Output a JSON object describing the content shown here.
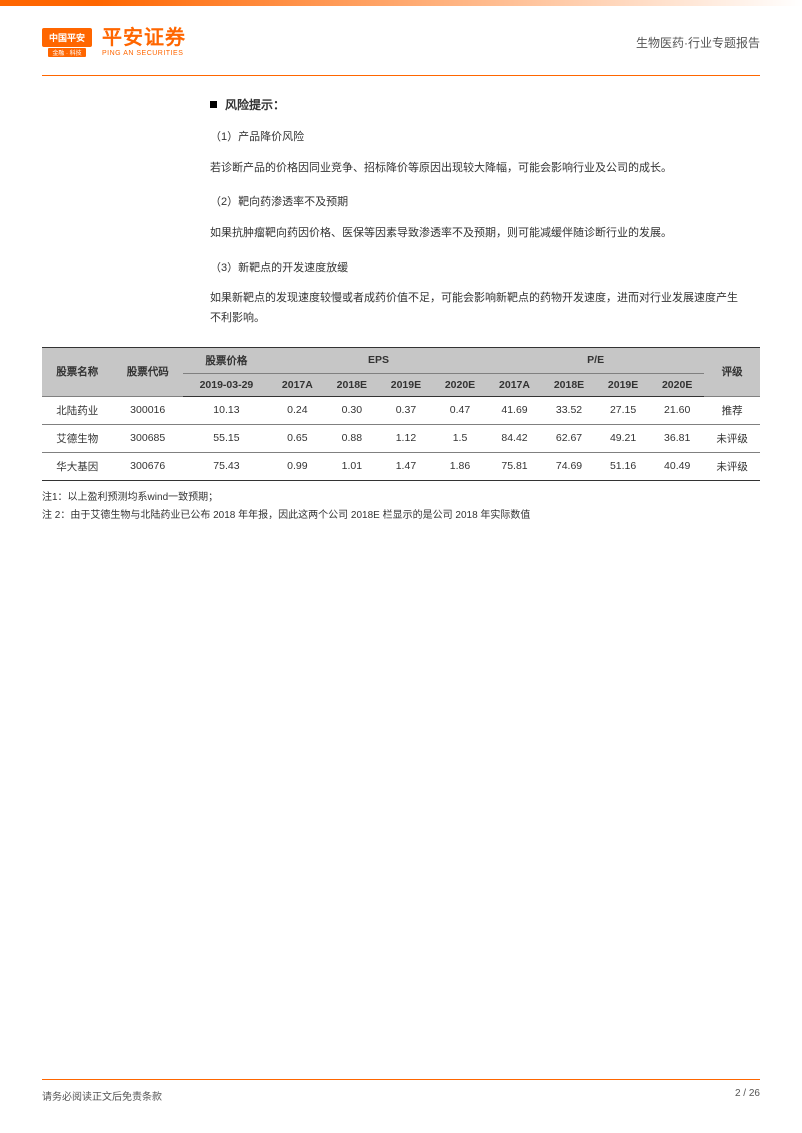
{
  "header": {
    "logo_badge_top": "中国平安",
    "logo_badge_bottom": "金融 · 科技",
    "logo_main": "平安证券",
    "logo_sub": "PING AN SECURITIES",
    "right_text": "生物医药·行业专题报告"
  },
  "risk": {
    "title": "风险提示：",
    "items": [
      {
        "title": "（1）产品降价风险",
        "body": "若诊断产品的价格因同业竞争、招标降价等原因出现较大降幅，可能会影响行业及公司的成长。"
      },
      {
        "title": "（2）靶向药渗透率不及预期",
        "body": "如果抗肿瘤靶向药因价格、医保等因素导致渗透率不及预期，则可能减缓伴随诊断行业的发展。"
      },
      {
        "title": "（3）新靶点的开发速度放缓",
        "body": "如果新靶点的发现速度较慢或者成药价值不足，可能会影响新靶点的药物开发速度，进而对行业发展速度产生不利影响。"
      }
    ]
  },
  "table": {
    "header_row1": {
      "stock_name": "股票名称",
      "stock_code": "股票代码",
      "price": "股票价格",
      "eps": "EPS",
      "pe": "P/E",
      "rating": "评级"
    },
    "header_row2": {
      "price_date": "2019-03-29",
      "eps_2017a": "2017A",
      "eps_2018e": "2018E",
      "eps_2019e": "2019E",
      "eps_2020e": "2020E",
      "pe_2017a": "2017A",
      "pe_2018e": "2018E",
      "pe_2019e": "2019E",
      "pe_2020e": "2020E"
    },
    "rows": [
      {
        "name": "北陆药业",
        "code": "300016",
        "price": "10.13",
        "eps17": "0.24",
        "eps18": "0.30",
        "eps19": "0.37",
        "eps20": "0.47",
        "pe17": "41.69",
        "pe18": "33.52",
        "pe19": "27.15",
        "pe20": "21.60",
        "rating": "推荐"
      },
      {
        "name": "艾德生物",
        "code": "300685",
        "price": "55.15",
        "eps17": "0.65",
        "eps18": "0.88",
        "eps19": "1.12",
        "eps20": "1.5",
        "pe17": "84.42",
        "pe18": "62.67",
        "pe19": "49.21",
        "pe20": "36.81",
        "rating": "未评级"
      },
      {
        "name": "华大基因",
        "code": "300676",
        "price": "75.43",
        "eps17": "0.99",
        "eps18": "1.01",
        "eps19": "1.47",
        "eps20": "1.86",
        "pe17": "75.81",
        "pe18": "74.69",
        "pe19": "51.16",
        "pe20": "40.49",
        "rating": "未评级"
      }
    ]
  },
  "notes": {
    "n1": "注1：以上盈利预测均系wind一致预期；",
    "n2": "注 2：由于艾德生物与北陆药业已公布 2018 年年报，因此这两个公司 2018E 栏显示的是公司 2018 年实际数值"
  },
  "footer": {
    "left": "请务必阅读正文后免责条款",
    "right": "2 / 26"
  }
}
